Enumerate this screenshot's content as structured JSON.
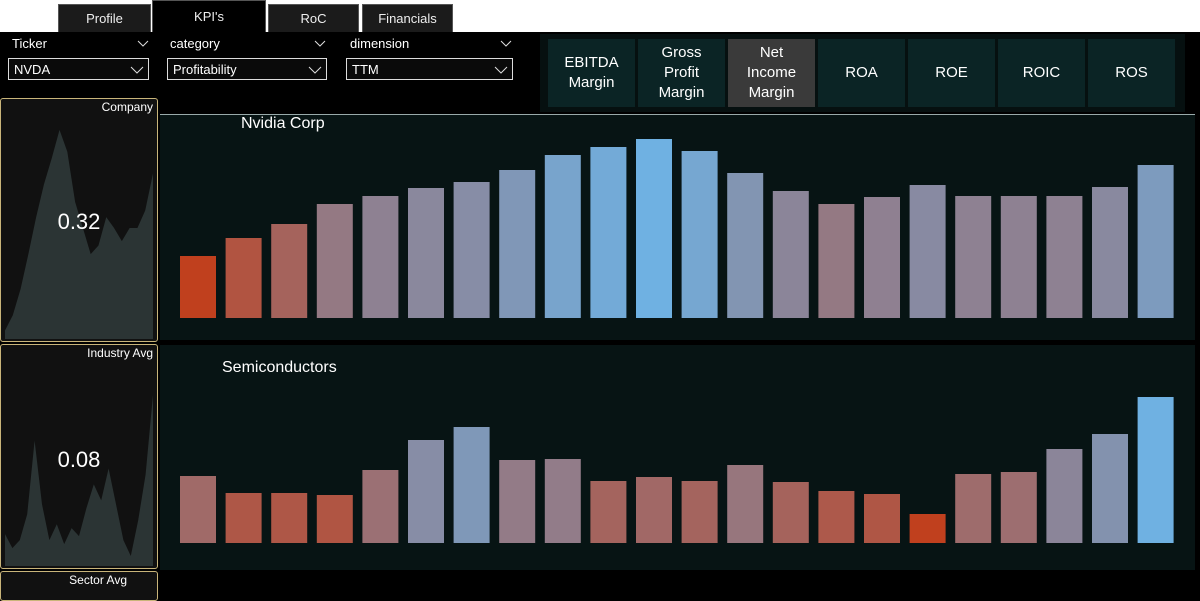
{
  "tabs": [
    "Profile",
    "KPI's",
    "RoC",
    "Financials"
  ],
  "filters": [
    {
      "label": "Ticker",
      "value": "NVDA"
    },
    {
      "label": "category",
      "value": "Profitability"
    },
    {
      "label": "dimension",
      "value": "TTM"
    }
  ],
  "metrics": [
    "EBITDA Margin",
    "Gross Profit Margin",
    "Net Income Margin",
    "ROA",
    "ROE",
    "ROIC",
    "ROS"
  ],
  "cards": [
    {
      "label": "Company",
      "value": 0.32,
      "sparkline": [
        0.03,
        0.1,
        0.22,
        0.38,
        0.55,
        0.7,
        0.82,
        0.95,
        0.85,
        0.62,
        0.5,
        0.38,
        0.42,
        0.55,
        0.5,
        0.44,
        0.5,
        0.5,
        0.58,
        0.75
      ]
    },
    {
      "label": "Industry Avg",
      "value": 0.08,
      "sparkline": [
        0.15,
        0.08,
        0.12,
        0.25,
        0.62,
        0.3,
        0.12,
        0.2,
        0.1,
        0.18,
        0.14,
        0.28,
        0.4,
        0.32,
        0.48,
        0.3,
        0.12,
        0.04,
        0.22,
        0.45,
        0.85
      ]
    },
    {
      "label": "Sector Avg"
    }
  ],
  "charts": [
    {
      "title": "Nvidia Corp",
      "values": [
        62,
        80,
        94,
        114,
        122,
        130,
        136,
        148,
        163,
        171,
        179,
        167,
        145,
        127,
        114,
        121,
        133,
        122,
        122,
        122,
        131,
        153
      ]
    },
    {
      "title": "Semiconductors",
      "values": [
        67,
        50,
        50,
        48,
        73,
        103,
        116,
        83,
        84,
        62,
        66,
        62,
        78,
        61,
        52,
        49,
        29,
        69,
        71,
        94,
        109,
        146
      ]
    }
  ]
}
